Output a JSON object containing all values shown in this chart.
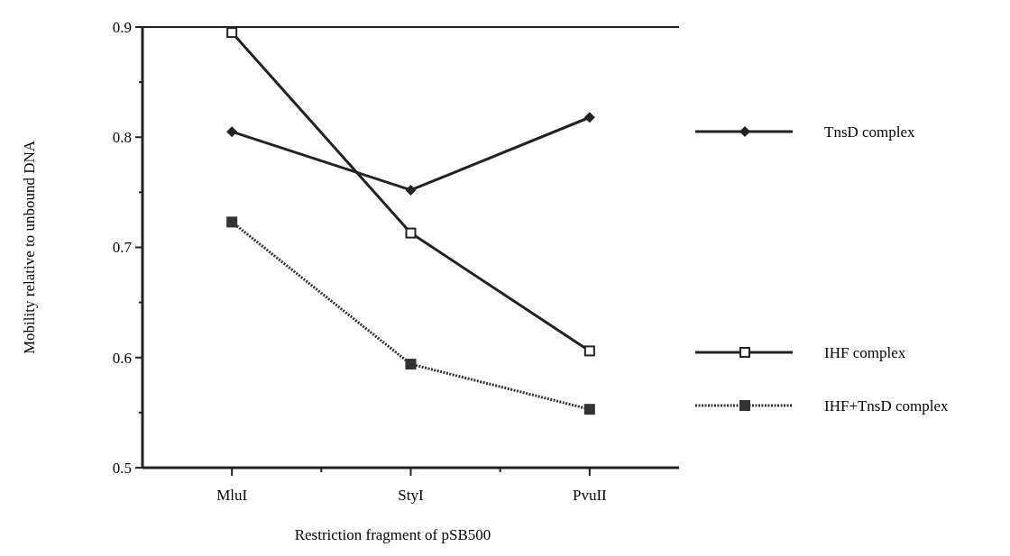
{
  "chart_data": {
    "type": "line",
    "xlabel": "Restriction fragment of pSB500",
    "ylabel": "Mobility relative to unbound DNA",
    "categories": [
      "MluI",
      "StyI",
      "PvuII"
    ],
    "ylim": [
      0.5,
      0.9
    ],
    "yticks": [
      0.5,
      {
        "value": 0.55,
        "label": null
      },
      0.6,
      {
        "value": 0.65,
        "label": null
      },
      0.7,
      {
        "value": 0.75,
        "label": null
      },
      0.8,
      {
        "value": 0.85,
        "label": null
      },
      0.9
    ],
    "legend": "right",
    "grid": false,
    "series": [
      {
        "name": "TnsD complex",
        "color": "#222222",
        "values": [
          0.805,
          0.752,
          0.818
        ],
        "marker": "diamond",
        "line_style": "solid"
      },
      {
        "name": "IHF complex",
        "color": "#222222",
        "values": [
          0.895,
          0.713,
          0.606
        ],
        "marker": "square",
        "line_style": "solid"
      },
      {
        "name": "IHF+TnsD complex",
        "color": "#333333",
        "values": [
          0.723,
          0.594,
          0.553
        ],
        "marker": "square",
        "line_style": "dotted"
      }
    ]
  }
}
